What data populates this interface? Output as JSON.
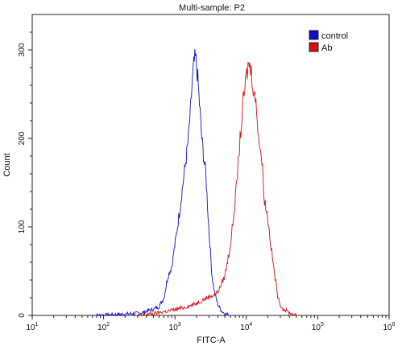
{
  "chart_data": {
    "type": "line",
    "title": "Multi-sample: P2",
    "xlabel": "FITC-A",
    "ylabel": "Count",
    "x_scale": "log",
    "xlim": [
      10,
      1000000
    ],
    "ylim": [
      0,
      340
    ],
    "x_ticks": [
      {
        "value": 10,
        "base": "10",
        "exp": "1"
      },
      {
        "value": 100,
        "base": "10",
        "exp": "2"
      },
      {
        "value": 1000,
        "base": "10",
        "exp": "3"
      },
      {
        "value": 10000,
        "base": "10",
        "exp": "4"
      },
      {
        "value": 100000,
        "base": "10",
        "exp": "5"
      },
      {
        "value": 1000000,
        "base": "10",
        "exp": "6"
      }
    ],
    "y_ticks": [
      0,
      100,
      200,
      300
    ],
    "grid": false,
    "legend_position": "top-right",
    "series": [
      {
        "name": "control",
        "color": "#1010c8",
        "x": [
          70,
          150,
          250,
          350,
          400,
          500,
          600,
          700,
          800,
          900,
          1000,
          1150,
          1300,
          1500,
          1650,
          1750,
          1850,
          1950,
          2050,
          2200,
          2400,
          2700,
          3000,
          3300,
          3600,
          4000,
          4500,
          5000,
          6000
        ],
        "y": [
          0,
          1,
          2,
          3,
          5,
          7,
          10,
          20,
          45,
          55,
          80,
          115,
          150,
          190,
          230,
          265,
          285,
          290,
          275,
          240,
          195,
          160,
          95,
          45,
          25,
          12,
          5,
          2,
          0
        ]
      },
      {
        "name": "Ab",
        "color": "#d81010",
        "x": [
          300,
          500,
          800,
          1200,
          1800,
          2500,
          3200,
          3800,
          4200,
          5000,
          6000,
          7000,
          8000,
          9000,
          10000,
          10500,
          11000,
          12000,
          13000,
          14000,
          15000,
          16500,
          18000,
          20000,
          22000,
          25000,
          28000,
          32000,
          40000,
          50000
        ],
        "y": [
          0,
          2,
          5,
          8,
          12,
          18,
          22,
          25,
          30,
          45,
          80,
          130,
          190,
          240,
          270,
          280,
          285,
          270,
          250,
          230,
          200,
          175,
          130,
          110,
          80,
          45,
          18,
          8,
          3,
          0
        ]
      }
    ]
  }
}
